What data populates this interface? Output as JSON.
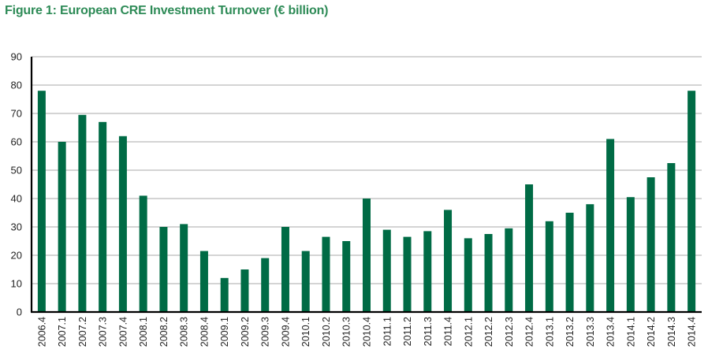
{
  "chart_data": {
    "type": "bar",
    "title": "Figure 1: European CRE Investment Turnover (€ billion)",
    "xlabel": "",
    "ylabel": "",
    "ylim": [
      0,
      90
    ],
    "yticks": [
      0,
      10,
      20,
      30,
      40,
      50,
      60,
      70,
      80,
      90
    ],
    "grid": true,
    "legend": "none",
    "bar_color": "#006B45",
    "title_color": "#2E8B57",
    "categories": [
      "2006.4",
      "2007.1",
      "2007.2",
      "2007.3",
      "2007.4",
      "2008.1",
      "2008.2",
      "2008.3",
      "2008.4",
      "2009.1",
      "2009.2",
      "2009.3",
      "2009.4",
      "2010.1",
      "2010.2",
      "2010.3",
      "2010.4",
      "2011.1",
      "2011.2",
      "2011.3",
      "2011.4",
      "2012.1",
      "2012.2",
      "2012.3",
      "2012.4",
      "2013.1",
      "2013.2",
      "2013.3",
      "2013.4",
      "2014.1",
      "2014.2",
      "2014.3",
      "2014.4"
    ],
    "values": [
      78,
      60,
      69.5,
      67,
      62,
      41,
      30,
      31,
      21.5,
      12,
      15,
      19,
      30,
      21.5,
      26.5,
      25,
      40,
      29,
      26.5,
      28.5,
      36,
      26,
      27.5,
      29.5,
      45,
      32,
      35,
      38,
      61,
      40.5,
      47.5,
      52.5,
      78
    ]
  }
}
